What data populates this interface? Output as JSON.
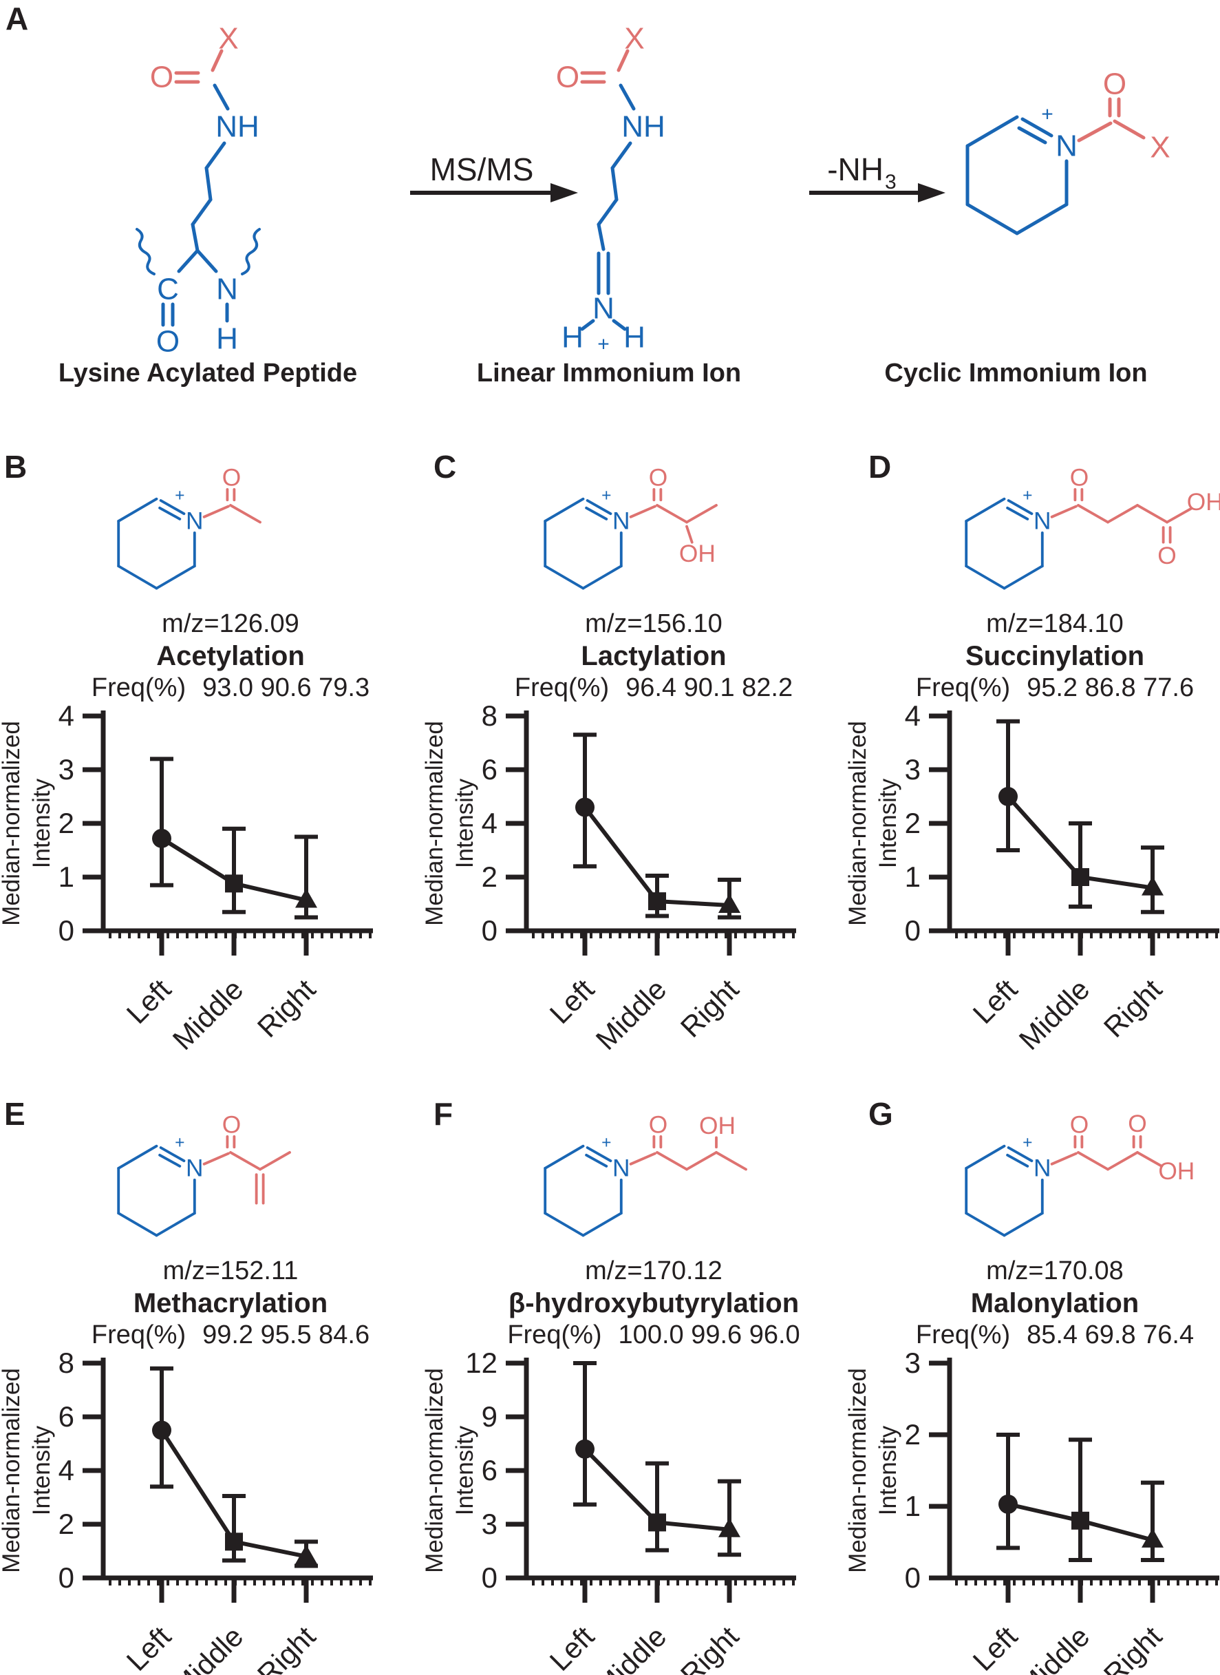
{
  "figure": {
    "colors": {
      "blue": "#1966B4",
      "red": "#DE7270",
      "black": "#231F20"
    },
    "panel_a": {
      "label": "A",
      "arrow1_label": "MS/MS",
      "arrow2_label": "-NH",
      "arrow2_subscript": "3",
      "captions": [
        "Lysine Acylated Peptide",
        "Linear Immonium Ion",
        "Cyclic Immonium Ion"
      ],
      "lysine_atoms": {
        "X": "X",
        "O_acyl": "O",
        "NH": "NH",
        "C": "C",
        "O_backbone": "O",
        "N": "N",
        "H": "H"
      },
      "linear_atoms": {
        "X": "X",
        "O_acyl": "O",
        "NH": "NH",
        "N": "N",
        "H_left": "H",
        "H_right": "H",
        "plus": "+"
      },
      "cyclic_atoms": {
        "plus": "+",
        "N": "N",
        "O": "O",
        "X": "X"
      }
    },
    "panels": [
      {
        "label": "B",
        "structure": "acetyl",
        "mz": "m/z=126.09",
        "name": "Acetylation",
        "freq_label": "Freq(%)",
        "freq_values": "93.0 90.6 79.3",
        "atoms": {
          "plus": "+",
          "N": "N",
          "O": "O"
        }
      },
      {
        "label": "C",
        "structure": "lactyl",
        "mz": "m/z=156.10",
        "name": "Lactylation",
        "freq_label": "Freq(%)",
        "freq_values": "96.4 90.1 82.2",
        "atoms": {
          "plus": "+",
          "N": "N",
          "O": "O",
          "OH": "OH"
        }
      },
      {
        "label": "D",
        "structure": "succinyl",
        "mz": "m/z=184.10",
        "name": "Succinylation",
        "freq_label": "Freq(%)",
        "freq_values": "95.2 86.8 77.6",
        "atoms": {
          "plus": "+",
          "N": "N",
          "O": "O",
          "O2": "O",
          "OH": "OH"
        }
      },
      {
        "label": "E",
        "structure": "methacrylyl",
        "mz": "m/z=152.11",
        "name": "Methacrylation",
        "freq_label": "Freq(%)",
        "freq_values": "99.2 95.5 84.6",
        "atoms": {
          "plus": "+",
          "N": "N",
          "O": "O"
        }
      },
      {
        "label": "F",
        "structure": "beta-hydroxybutyryl",
        "mz": "m/z=170.12",
        "name": "β-hydroxybutyrylation",
        "freq_label": "Freq(%)",
        "freq_values": "100.0 99.6 96.0",
        "atoms": {
          "plus": "+",
          "N": "N",
          "O": "O",
          "OH": "OH"
        }
      },
      {
        "label": "G",
        "structure": "malonyl",
        "mz": "m/z=170.08",
        "name": "Malonylation",
        "freq_label": "Freq(%)",
        "freq_values": "85.4 69.8 76.4",
        "atoms": {
          "plus": "+",
          "N": "N",
          "O": "O",
          "O2": "O",
          "OH": "OH"
        }
      }
    ]
  },
  "chart_data": [
    {
      "panel": "B",
      "type": "line",
      "title": "Acetylation",
      "mz": "m/z=126.09",
      "categories": [
        "Left",
        "Middle",
        "Right"
      ],
      "freq_percent": [
        93.0,
        90.6,
        79.3
      ],
      "median": [
        1.72,
        0.88,
        0.57
      ],
      "err_low": [
        0.85,
        0.35,
        0.25
      ],
      "err_high": [
        3.2,
        1.9,
        1.75
      ],
      "markers": [
        "circle",
        "square",
        "triangle"
      ],
      "ylabel_lines": [
        "Median-normalized",
        "Intensity"
      ],
      "ylim": [
        0,
        4
      ],
      "yticks": [
        0,
        1,
        2,
        3,
        4
      ],
      "grid": false,
      "legend": "none"
    },
    {
      "panel": "C",
      "type": "line",
      "title": "Lactylation",
      "mz": "m/z=156.10",
      "categories": [
        "Left",
        "Middle",
        "Right"
      ],
      "freq_percent": [
        96.4,
        90.1,
        82.2
      ],
      "median": [
        4.6,
        1.1,
        0.95
      ],
      "err_low": [
        2.4,
        0.55,
        0.5
      ],
      "err_high": [
        7.3,
        2.05,
        1.9
      ],
      "markers": [
        "circle",
        "square",
        "triangle"
      ],
      "ylabel_lines": [
        "Median-normalized",
        "Intensity"
      ],
      "ylim": [
        0,
        8
      ],
      "yticks": [
        0,
        2,
        4,
        6,
        8
      ],
      "grid": false,
      "legend": "none"
    },
    {
      "panel": "D",
      "type": "line",
      "title": "Succinylation",
      "mz": "m/z=184.10",
      "categories": [
        "Left",
        "Middle",
        "Right"
      ],
      "freq_percent": [
        95.2,
        86.8,
        77.6
      ],
      "median": [
        2.5,
        1.0,
        0.8
      ],
      "err_low": [
        1.5,
        0.45,
        0.35
      ],
      "err_high": [
        3.9,
        2.0,
        1.55
      ],
      "markers": [
        "circle",
        "square",
        "triangle"
      ],
      "ylabel_lines": [
        "Median-normalized",
        "Intensity"
      ],
      "ylim": [
        0,
        4
      ],
      "yticks": [
        0,
        1,
        2,
        3,
        4
      ],
      "grid": false,
      "legend": "none"
    },
    {
      "panel": "E",
      "type": "line",
      "title": "Methacrylation",
      "mz": "m/z=152.11",
      "categories": [
        "Left",
        "Middle",
        "Right"
      ],
      "freq_percent": [
        99.2,
        95.5,
        84.6
      ],
      "median": [
        5.5,
        1.35,
        0.8
      ],
      "err_low": [
        3.4,
        0.65,
        0.45
      ],
      "err_high": [
        7.8,
        3.05,
        1.35
      ],
      "markers": [
        "circle",
        "square",
        "triangle"
      ],
      "ylabel_lines": [
        "Median-normalized",
        "Intensity"
      ],
      "ylim": [
        0,
        8
      ],
      "yticks": [
        0,
        2,
        4,
        6,
        8
      ],
      "grid": false,
      "legend": "none"
    },
    {
      "panel": "F",
      "type": "line",
      "title": "β-hydroxybutyrylation",
      "mz": "m/z=170.12",
      "categories": [
        "Left",
        "Middle",
        "Right"
      ],
      "freq_percent": [
        100.0,
        99.6,
        96.0
      ],
      "median": [
        7.2,
        3.1,
        2.7
      ],
      "err_low": [
        4.1,
        1.55,
        1.3
      ],
      "err_high": [
        12.0,
        6.4,
        5.4
      ],
      "markers": [
        "circle",
        "square",
        "triangle"
      ],
      "ylabel_lines": [
        "Median-normalized",
        "Intensity"
      ],
      "ylim": [
        0,
        12
      ],
      "yticks": [
        0,
        3,
        6,
        9,
        12
      ],
      "grid": false,
      "legend": "none"
    },
    {
      "panel": "G",
      "type": "line",
      "title": "Malonylation",
      "mz": "m/z=170.08",
      "categories": [
        "Left",
        "Middle",
        "Right"
      ],
      "freq_percent": [
        85.4,
        69.8,
        76.4
      ],
      "median": [
        1.03,
        0.8,
        0.53
      ],
      "err_low": [
        0.42,
        0.25,
        0.25
      ],
      "err_high": [
        2.0,
        1.93,
        1.33
      ],
      "markers": [
        "circle",
        "square",
        "triangle"
      ],
      "ylabel_lines": [
        "Median-normalized",
        "Intensity"
      ],
      "ylim": [
        0,
        3
      ],
      "yticks": [
        0,
        1,
        2,
        3
      ],
      "grid": false,
      "legend": "none"
    }
  ]
}
